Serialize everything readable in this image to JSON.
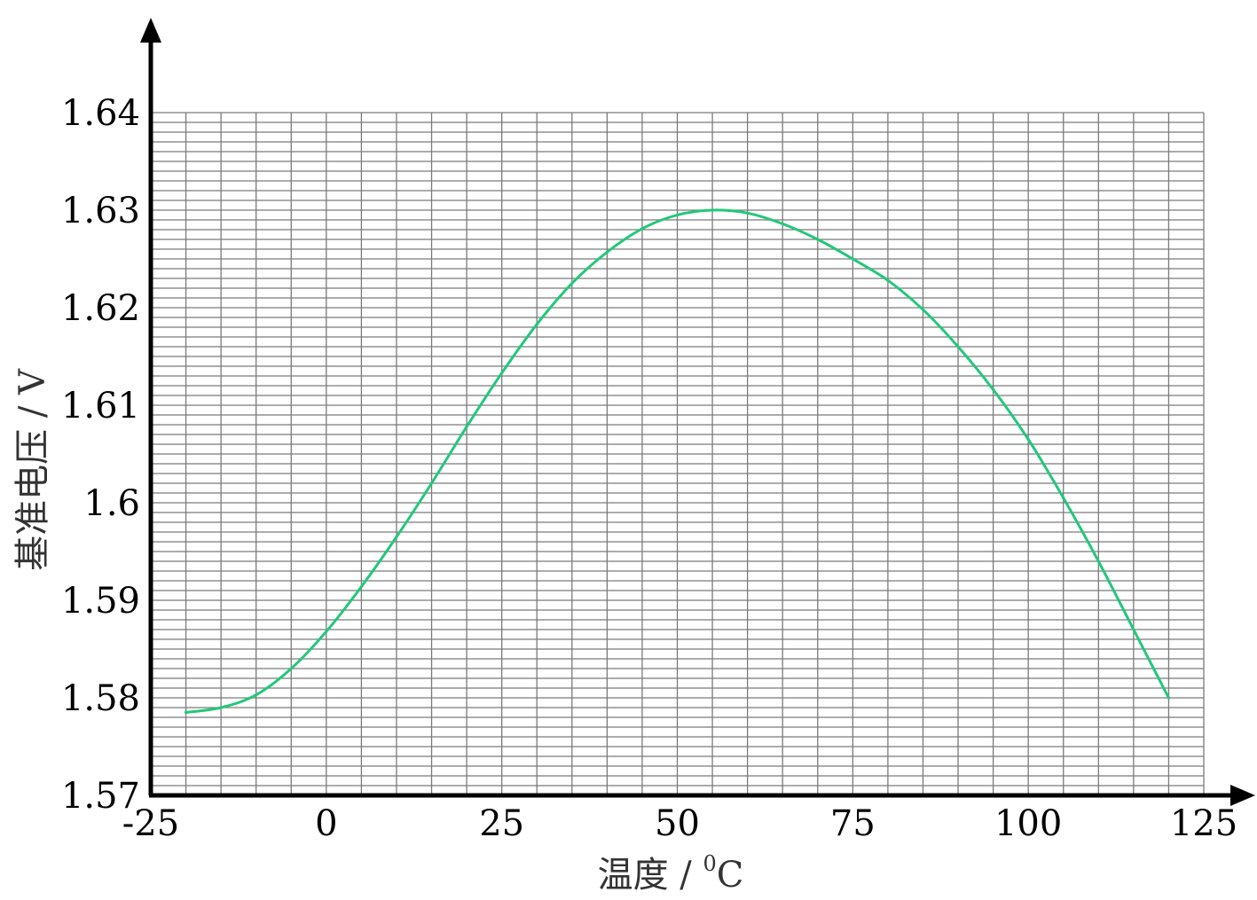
{
  "chart_data": {
    "type": "line",
    "xlabel": "温度 / ",
    "xlabel_sup": "0",
    "xlabel_unit": "C",
    "ylabel": "基准电压 / V",
    "xlim": [
      -25,
      125
    ],
    "ylim": [
      1.57,
      1.64
    ],
    "xticks": [
      -25,
      0,
      25,
      50,
      75,
      100,
      125
    ],
    "xtick_labels": [
      "-25",
      "0",
      "25",
      "50",
      "75",
      "100",
      "125"
    ],
    "yticks": [
      1.57,
      1.58,
      1.59,
      1.6,
      1.61,
      1.62,
      1.63,
      1.64
    ],
    "ytick_labels": [
      "1.57",
      "1.58",
      "1.59",
      "1.6",
      "1.61",
      "1.62",
      "1.63",
      "1.64"
    ],
    "grid": true,
    "line_color": "#22c87a",
    "series": [
      {
        "x": [
          -20,
          -15,
          -10,
          -5,
          0,
          5,
          10,
          15,
          20,
          25,
          30,
          35,
          40,
          45,
          50,
          55,
          60,
          65,
          70,
          75,
          80,
          85,
          90,
          95,
          100,
          105,
          110,
          115,
          120
        ],
        "values": [
          1.5785,
          1.579,
          1.5803,
          1.583,
          1.5868,
          1.5914,
          1.5965,
          1.602,
          1.6078,
          1.6133,
          1.6183,
          1.6225,
          1.6257,
          1.6281,
          1.6295,
          1.63,
          1.6297,
          1.6286,
          1.627,
          1.625,
          1.6228,
          1.6198,
          1.616,
          1.6116,
          1.6065,
          1.6005,
          1.594,
          1.587,
          1.58
        ]
      }
    ]
  }
}
